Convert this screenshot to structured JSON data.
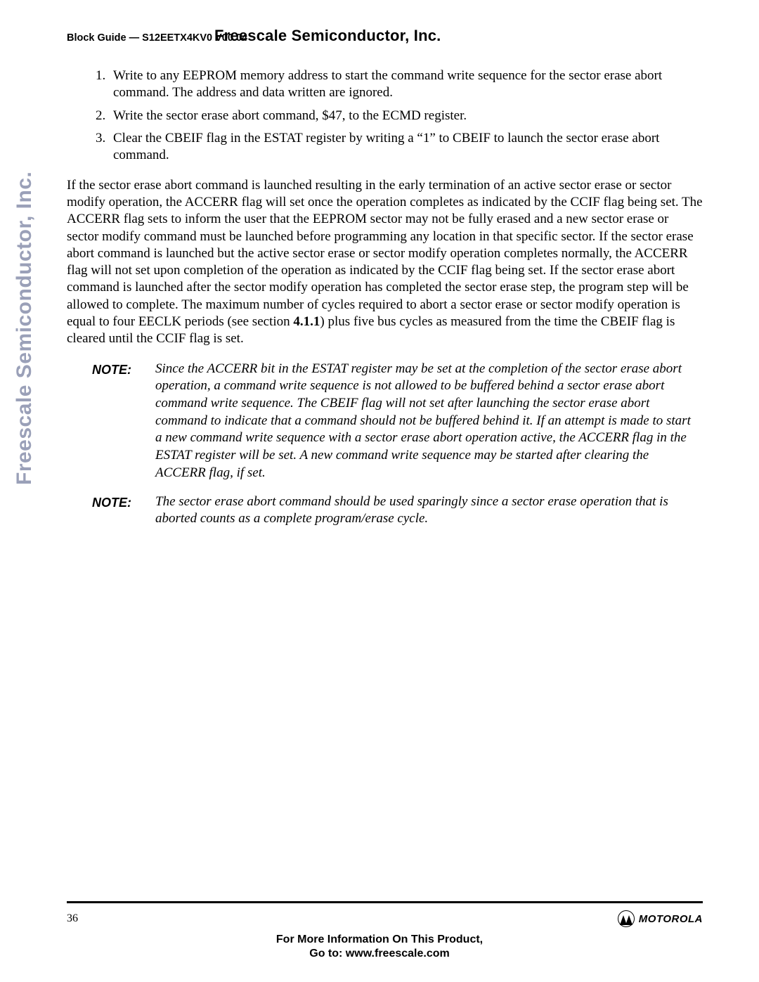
{
  "header": {
    "block_guide": "Block Guide — S12EETX4KV0 V00.04",
    "company": "Freescale Semiconductor, Inc."
  },
  "steps": [
    "Write to any EEPROM memory address to start the command write sequence for the sector erase abort command. The address and data written are ignored.",
    "Write the sector erase abort command, $47, to the ECMD register.",
    "Clear the CBEIF flag in the ESTAT register by writing a “1” to CBEIF to launch the sector erase abort command."
  ],
  "paragraph_pre": "If the sector erase abort command is launched resulting in the early termination of an active sector erase or sector modify operation, the ACCERR flag will set once the operation completes as indicated by the CCIF flag being set. The ACCERR flag sets to inform the user that the EEPROM sector may not be fully erased and a new sector erase or sector modify command must be launched before programming any location in that specific sector. If the sector erase abort command is launched but the active sector erase or sector modify operation completes normally, the ACCERR flag will not set upon completion of the operation as indicated by the CCIF flag being set.  If the sector erase abort command is launched after the sector modify operation has completed the sector erase step, the program step will be allowed to complete. The maximum number of cycles required to abort a sector erase or sector modify operation is equal to four EECLK periods (see section ",
  "paragraph_ref": "4.1.1",
  "paragraph_post": ") plus five bus cycles as measured from the time the CBEIF flag is cleared until the CCIF flag is set.",
  "notes": [
    {
      "label": "NOTE:",
      "text": "Since the ACCERR bit in the ESTAT register may be set at the completion of the sector erase abort operation, a command write sequence is not allowed to be buffered behind a sector erase abort command write sequence. The CBEIF flag will not set after launching the sector erase abort command to indicate that a command should not be buffered behind it. If an attempt is made to start a new command write sequence with a sector erase abort operation active, the ACCERR flag in the ESTAT register will be set. A new command write sequence may be started after clearing the ACCERR flag, if set."
    },
    {
      "label": "NOTE:",
      "text": "The sector erase abort command should be used sparingly since a sector erase operation that is aborted counts as a complete program/erase cycle."
    }
  ],
  "watermark": "Freescale Semiconductor, Inc.",
  "footer": {
    "page": "36",
    "brand": "MOTOROLA",
    "line1": "For More Information On This Product,",
    "line2": "Go to: www.freescale.com"
  }
}
